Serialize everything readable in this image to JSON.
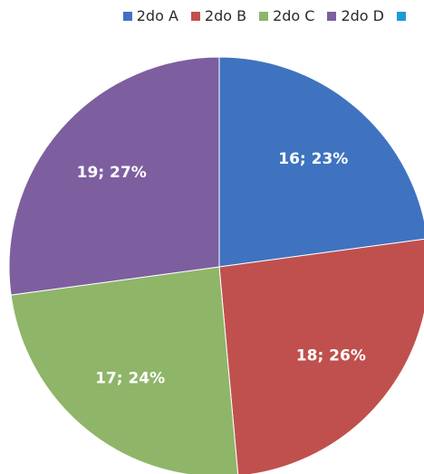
{
  "chart_data": {
    "type": "pie",
    "categories": [
      "2do A",
      "2do B",
      "2do C",
      "2do D"
    ],
    "values": [
      16,
      18,
      17,
      19
    ],
    "percents": [
      "23%",
      "26%",
      "24%",
      "27%"
    ],
    "labels": [
      "16; 23%",
      "18; 26%",
      "17; 24%",
      "19; 27%"
    ],
    "colors": [
      "#3f73c0",
      "#c0504d",
      "#8fb569",
      "#7d5fa0"
    ],
    "extra_legend_color": "#1f9ad6",
    "legend_position": "top-right"
  }
}
